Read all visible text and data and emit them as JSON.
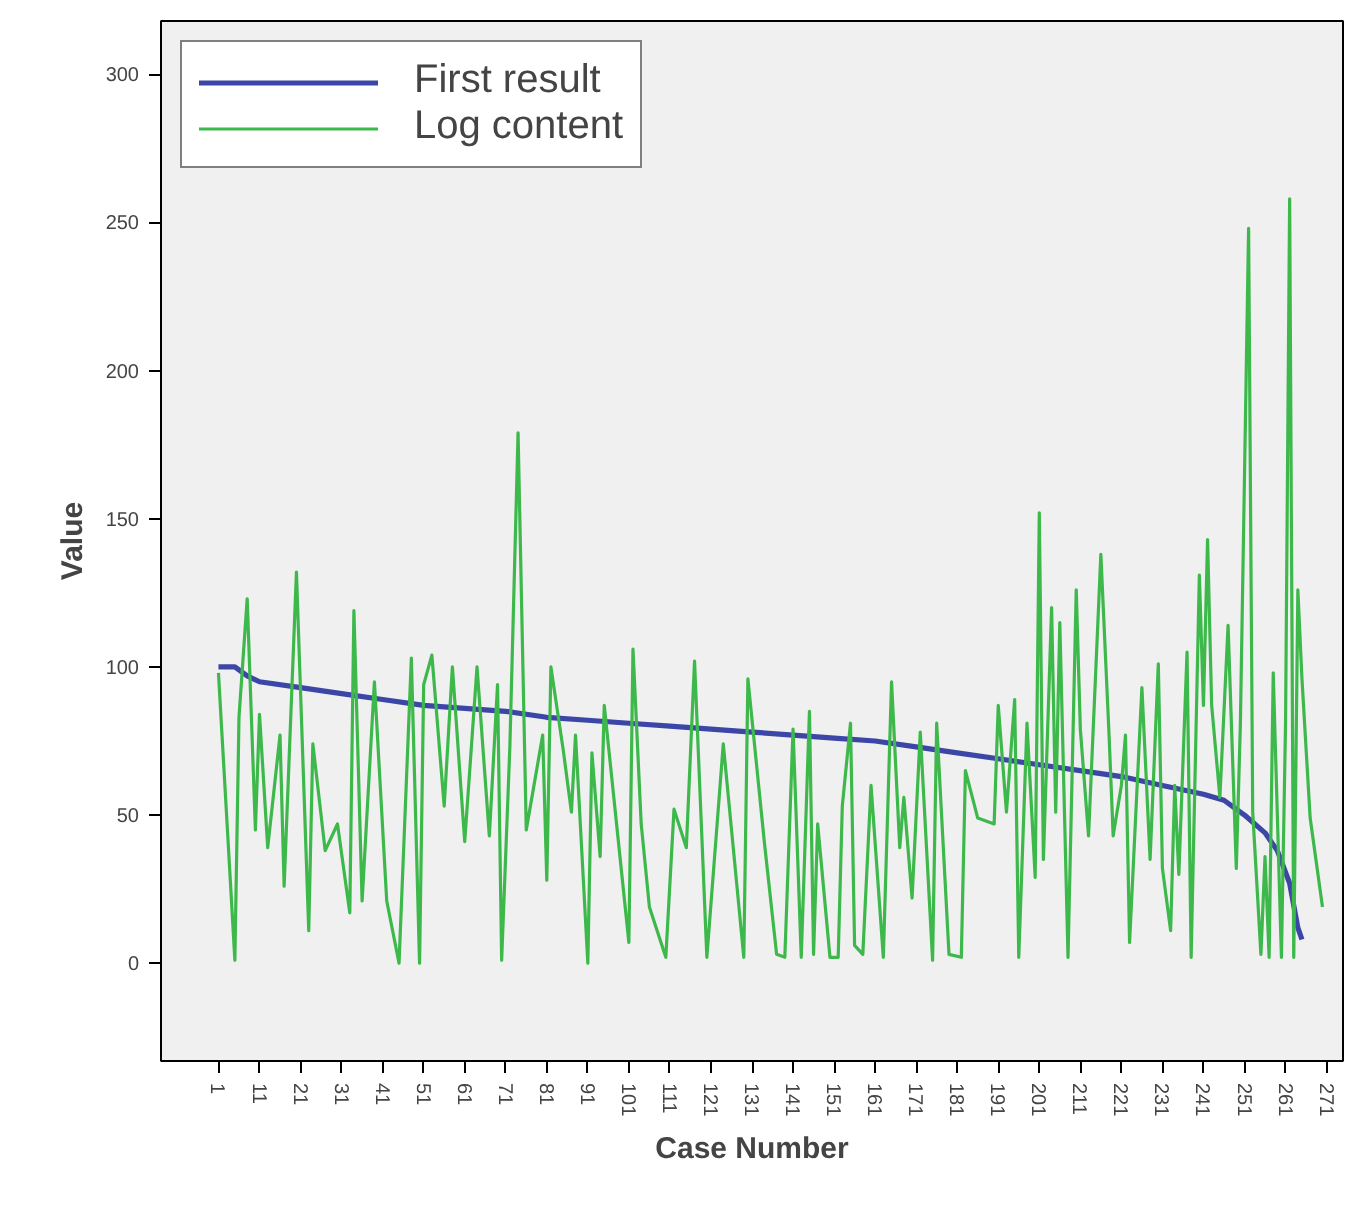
{
  "chart_data": {
    "type": "line",
    "xlabel": "Case Number",
    "ylabel": "Value",
    "xlim": [
      -13,
      275
    ],
    "ylim": [
      -33,
      318
    ],
    "xticks": [
      1,
      11,
      21,
      31,
      41,
      51,
      61,
      71,
      81,
      91,
      101,
      111,
      121,
      131,
      141,
      151,
      161,
      171,
      181,
      191,
      201,
      211,
      221,
      231,
      241,
      251,
      261,
      271
    ],
    "yticks": [
      0,
      50,
      100,
      150,
      200,
      250,
      300
    ],
    "grid": false,
    "legend": "top left",
    "marker": "none",
    "line_style": "solid",
    "series": [
      {
        "name": "First result",
        "color": "#3c46a6",
        "x": [
          1,
          5,
          8,
          11,
          21,
          31,
          41,
          51,
          61,
          71,
          81,
          91,
          101,
          111,
          121,
          131,
          141,
          151,
          161,
          171,
          181,
          191,
          201,
          211,
          221,
          231,
          241,
          246,
          251,
          256,
          259,
          262,
          264,
          265
        ],
        "values": [
          100,
          100,
          97,
          95,
          93,
          91,
          89,
          87,
          86,
          85,
          83,
          82,
          81,
          80,
          79,
          78,
          77,
          76,
          75,
          73,
          71,
          69,
          67,
          65,
          63,
          60,
          57,
          55,
          50,
          44,
          38,
          27,
          12,
          8
        ]
      },
      {
        "name": "Log content",
        "color": "#3db84b",
        "x": [
          1,
          5,
          6,
          8,
          10,
          11,
          13,
          16,
          17,
          20,
          23,
          24,
          27,
          30,
          33,
          34,
          36,
          39,
          42,
          45,
          48,
          50,
          51,
          53,
          56,
          58,
          61,
          64,
          67,
          69,
          70,
          72,
          74,
          76,
          80,
          81,
          82,
          85,
          87,
          88,
          91,
          92,
          94,
          95,
          101,
          102,
          104,
          106,
          110,
          112,
          115,
          117,
          120,
          124,
          129,
          130,
          134,
          137,
          139,
          141,
          143,
          145,
          146,
          147,
          150,
          152,
          153,
          155,
          156,
          158,
          160,
          163,
          165,
          167,
          168,
          170,
          172,
          175,
          176,
          179,
          182,
          183,
          186,
          190,
          191,
          193,
          195,
          196,
          198,
          200,
          201,
          202,
          204,
          205,
          206,
          208,
          210,
          211,
          213,
          216,
          218,
          219,
          221,
          222,
          223,
          226,
          228,
          230,
          231,
          233,
          234,
          235,
          237,
          238,
          240,
          241,
          242,
          243,
          245,
          247,
          249,
          250,
          252,
          253,
          255,
          256,
          257,
          258,
          260,
          261,
          262,
          263,
          264,
          265,
          267,
          270
        ],
        "values": [
          98,
          1,
          83,
          123,
          45,
          84,
          39,
          77,
          26,
          132,
          11,
          74,
          38,
          47,
          17,
          119,
          21,
          95,
          21,
          0,
          103,
          0,
          94,
          104,
          53,
          100,
          41,
          100,
          43,
          94,
          1,
          73,
          179,
          45,
          77,
          28,
          100,
          72,
          51,
          77,
          0,
          71,
          36,
          87,
          7,
          106,
          47,
          19,
          2,
          52,
          39,
          102,
          2,
          74,
          2,
          96,
          41,
          3,
          2,
          79,
          2,
          85,
          3,
          47,
          2,
          2,
          53,
          81,
          6,
          3,
          60,
          2,
          95,
          39,
          56,
          22,
          78,
          1,
          81,
          3,
          2,
          65,
          49,
          47,
          87,
          51,
          89,
          2,
          81,
          29,
          152,
          35,
          120,
          51,
          115,
          2,
          126,
          79,
          43,
          138,
          77,
          43,
          60,
          77,
          7,
          93,
          35,
          101,
          32,
          11,
          60,
          30,
          105,
          2,
          131,
          87,
          143,
          87,
          56,
          114,
          32,
          81,
          248,
          51,
          3,
          36,
          2,
          98,
          2,
          81,
          258,
          2,
          126,
          96,
          49,
          19
        ]
      }
    ]
  }
}
